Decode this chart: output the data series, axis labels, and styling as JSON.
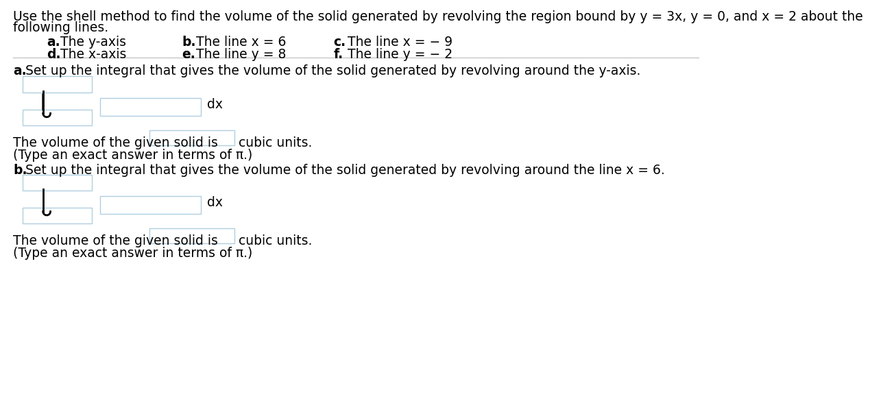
{
  "title_line1": "Use the shell method to find the volume of the solid generated by revolving the region bound by y = 3x, y = 0, and x = 2 about the",
  "title_line2": "following lines.",
  "background_color": "#ffffff",
  "text_color": "#000000",
  "box_edge_color": "#b0cfe0",
  "separator_color": "#bbbbbb",
  "font_size": 13.5,
  "font_size_small": 12.5,
  "items": {
    "a_label": "a.",
    "a_text": "The y-axis",
    "b_label": "b.",
    "b_text": "The line x = 6",
    "c_label": "c.",
    "c_text": "The line x = − 9",
    "d_label": "d.",
    "d_text": "The x-axis",
    "e_label": "e.",
    "e_text": "The line y = 8",
    "f_label": "f.",
    "f_text": "The line y = − 2"
  },
  "sec_a_head": "Set up the integral that gives the volume of the solid generated by revolving around the y-axis.",
  "sec_b_head": "Set up the integral that gives the volume of the solid generated by revolving around the line x = 6.",
  "vol_text": "The volume of the given solid is",
  "vol_units": "cubic units.",
  "type_text": "(Type an exact answer in terms of π.)"
}
